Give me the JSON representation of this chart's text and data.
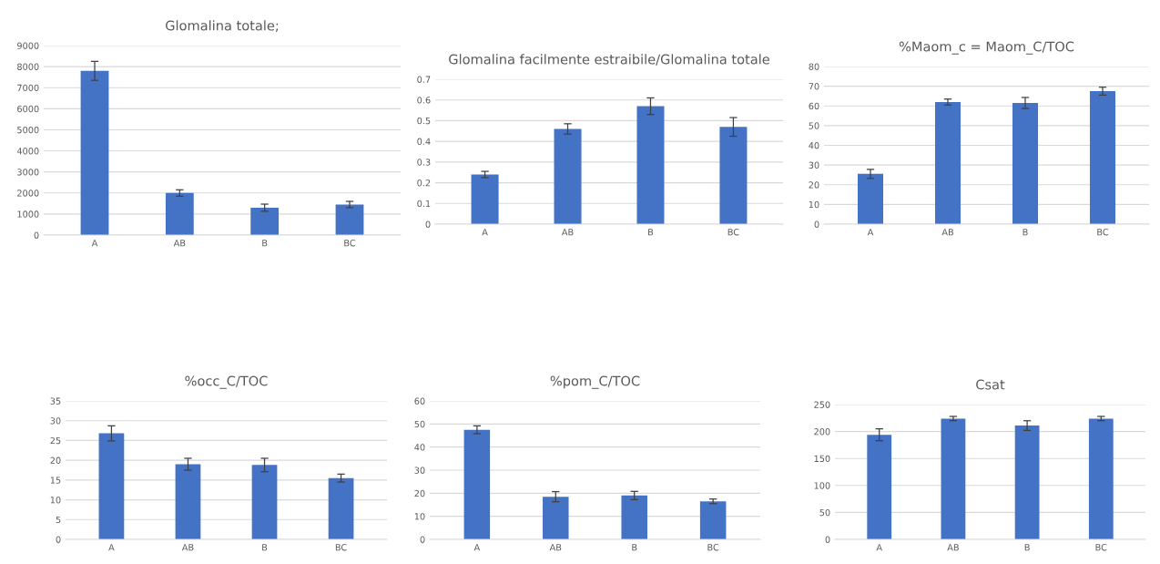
{
  "chart_data": [
    {
      "type": "bar",
      "title": "Glomalina totale;",
      "categories": [
        "A",
        "AB",
        "B",
        "BC"
      ],
      "values": [
        7800,
        2000,
        1300,
        1450
      ],
      "errors": [
        450,
        150,
        170,
        150
      ],
      "color": "#4472c4",
      "ylim": [
        0,
        9000
      ],
      "yticks": [
        0,
        1000,
        2000,
        3000,
        4000,
        5000,
        6000,
        7000,
        8000,
        9000
      ],
      "grid": "y"
    },
    {
      "type": "bar",
      "title": "Glomalina facilmente estraibile/Glomalina totale",
      "categories": [
        "A",
        "AB",
        "B",
        "BC"
      ],
      "values": [
        0.24,
        0.46,
        0.57,
        0.47
      ],
      "errors": [
        0.015,
        0.025,
        0.04,
        0.045
      ],
      "color": "#4472c4",
      "ylim": [
        0,
        0.7
      ],
      "yticks": [
        0,
        0.1,
        0.2,
        0.3,
        0.4,
        0.5,
        0.6,
        0.7
      ],
      "grid": "y"
    },
    {
      "type": "bar",
      "title": "%Maom_c = Maom_C/TOC",
      "categories": [
        "A",
        "AB",
        "B",
        "BC"
      ],
      "values": [
        25.5,
        62,
        61.5,
        67.5
      ],
      "errors": [
        2.3,
        1.5,
        2.8,
        2
      ],
      "color": "#4472c4",
      "ylim": [
        0,
        80
      ],
      "yticks": [
        0,
        10,
        20,
        30,
        40,
        50,
        60,
        70,
        80
      ],
      "grid": "y"
    },
    {
      "type": "bar",
      "title": "%occ_C/TOC",
      "categories": [
        "A",
        "AB",
        "B",
        "BC"
      ],
      "values": [
        26.8,
        19,
        18.8,
        15.5
      ],
      "errors": [
        1.9,
        1.5,
        1.7,
        1
      ],
      "color": "#4472c4",
      "ylim": [
        0,
        35
      ],
      "yticks": [
        0,
        5,
        10,
        15,
        20,
        25,
        30,
        35
      ],
      "grid": "y"
    },
    {
      "type": "bar",
      "title": "%pom_C/TOC",
      "categories": [
        "A",
        "AB",
        "B",
        "BC"
      ],
      "values": [
        47.5,
        18.5,
        19,
        16.5
      ],
      "errors": [
        1.7,
        2.2,
        1.8,
        1
      ],
      "color": "#4472c4",
      "ylim": [
        0,
        60
      ],
      "yticks": [
        0,
        10,
        20,
        30,
        40,
        50,
        60
      ],
      "grid": "y"
    },
    {
      "type": "bar",
      "title": "Csat",
      "categories": [
        "A",
        "AB",
        "B",
        "BC"
      ],
      "values": [
        194,
        224,
        211,
        224
      ],
      "errors": [
        11,
        4,
        9,
        4
      ],
      "color": "#4472c4",
      "ylim": [
        0,
        250
      ],
      "yticks": [
        0,
        50,
        100,
        150,
        200,
        250
      ],
      "grid": "y"
    }
  ]
}
